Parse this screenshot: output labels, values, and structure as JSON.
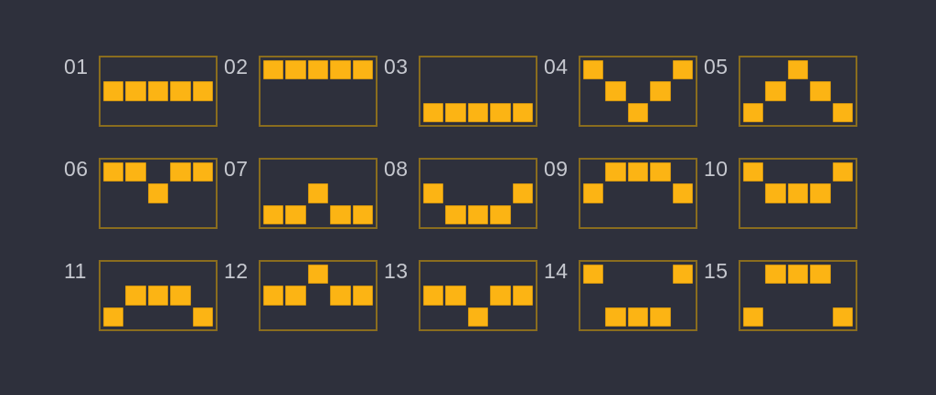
{
  "paylines_panel": {
    "grid_columns": 5,
    "grid_rows": 3,
    "items": [
      {
        "label": "01",
        "pattern": [
          1,
          1,
          1,
          1,
          1
        ]
      },
      {
        "label": "02",
        "pattern": [
          0,
          0,
          0,
          0,
          0
        ]
      },
      {
        "label": "03",
        "pattern": [
          2,
          2,
          2,
          2,
          2
        ]
      },
      {
        "label": "04",
        "pattern": [
          0,
          1,
          2,
          1,
          0
        ]
      },
      {
        "label": "05",
        "pattern": [
          2,
          1,
          0,
          1,
          2
        ]
      },
      {
        "label": "06",
        "pattern": [
          0,
          0,
          1,
          0,
          0
        ]
      },
      {
        "label": "07",
        "pattern": [
          2,
          2,
          1,
          2,
          2
        ]
      },
      {
        "label": "08",
        "pattern": [
          1,
          2,
          2,
          2,
          1
        ]
      },
      {
        "label": "09",
        "pattern": [
          1,
          0,
          0,
          0,
          1
        ]
      },
      {
        "label": "10",
        "pattern": [
          0,
          1,
          1,
          1,
          0
        ]
      },
      {
        "label": "11",
        "pattern": [
          2,
          1,
          1,
          1,
          2
        ]
      },
      {
        "label": "12",
        "pattern": [
          1,
          1,
          0,
          1,
          1
        ]
      },
      {
        "label": "13",
        "pattern": [
          1,
          1,
          2,
          1,
          1
        ]
      },
      {
        "label": "14",
        "pattern": [
          0,
          2,
          2,
          2,
          0
        ]
      },
      {
        "label": "15",
        "pattern": [
          2,
          0,
          0,
          0,
          2
        ]
      }
    ]
  },
  "colors": {
    "page_background": "#2e303c",
    "square": "#fcb414",
    "box_border": "#8a6d1e",
    "label_text": "#c6c8cf"
  }
}
